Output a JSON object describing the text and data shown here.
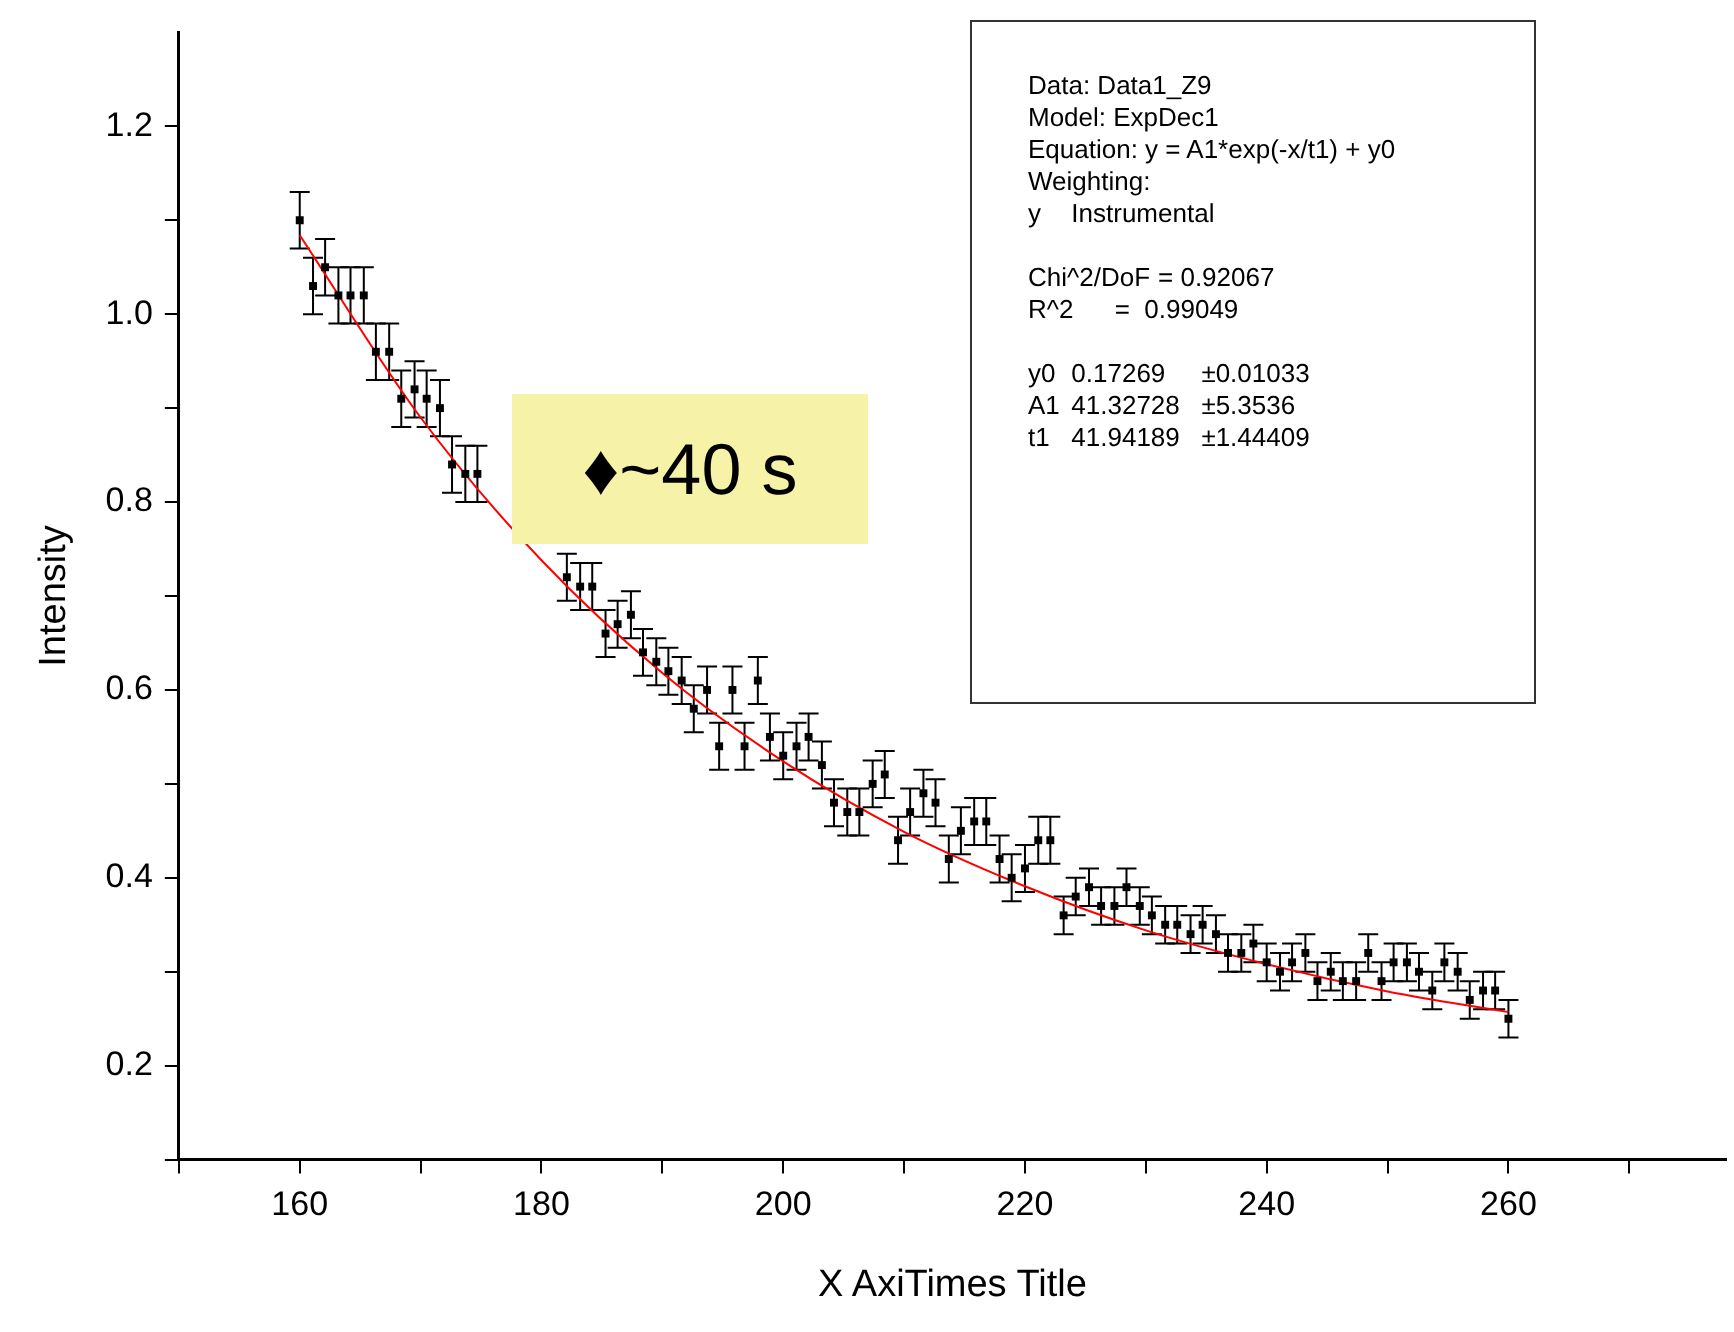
{
  "chart_data": {
    "type": "scatter",
    "xlabel": "X AxiTimes Title",
    "ylabel": "Intensity",
    "grid": false,
    "legend": false,
    "xlim": [
      150,
      278
    ],
    "xticks": [
      {
        "value": 150,
        "label": null
      },
      160,
      {
        "value": 170,
        "label": null
      },
      180,
      {
        "value": 190,
        "label": null
      },
      200,
      {
        "value": 210,
        "label": null
      },
      220,
      {
        "value": 230,
        "label": null
      },
      240,
      {
        "value": 250,
        "label": null
      },
      260,
      {
        "value": 270,
        "label": null
      }
    ],
    "ylim": [
      0.1,
      1.3
    ],
    "yticks": [
      {
        "value": 0.1,
        "label": null
      },
      0.2,
      {
        "value": 0.3,
        "label": null
      },
      0.4,
      {
        "value": 0.5,
        "label": null
      },
      0.6,
      {
        "value": 0.7,
        "label": null
      },
      0.8,
      {
        "value": 0.9,
        "label": null
      },
      {
        "value": 1,
        "label": "1.0"
      },
      {
        "value": 1.1,
        "label": null
      },
      1.2
    ],
    "annotations": [
      "♦~40 s",
      "Data: Data1_Z9\nModel: ExpDec1\nEquation: y = A1*exp(-x/t1) + y0\nWeighting:\ny\tInstrumental\n\nChi^2/DoF\t= 0.92067\nR^2\t=  0.99049\n\ny0\t0.17269\t±0.01033\nA1\t41.32728\t±5.3536\nt1\t41.94189\t±1.44409"
    ],
    "series": [
      {
        "type": "scatter",
        "marker": "square",
        "color": "#000000",
        "x": [
          160.0,
          161.1,
          162.1,
          163.2,
          164.2,
          165.3,
          166.3,
          167.4,
          168.4,
          169.5,
          170.5,
          171.6,
          172.6,
          173.7,
          174.7,
          175.8,
          176.8,
          177.9,
          178.9,
          180.0,
          181.1,
          182.1,
          183.2,
          184.2,
          185.3,
          186.3,
          187.4,
          188.4,
          189.5,
          190.5,
          191.6,
          192.6,
          193.7,
          194.7,
          195.8,
          196.8,
          197.9,
          198.9,
          200.0,
          201.1,
          202.1,
          203.2,
          204.2,
          205.3,
          206.3,
          207.4,
          208.4,
          209.5,
          210.5,
          211.6,
          212.6,
          213.7,
          214.7,
          215.8,
          216.8,
          217.9,
          218.9,
          220.0,
          221.1,
          222.1,
          223.2,
          224.2,
          225.3,
          226.3,
          227.4,
          228.4,
          229.5,
          230.5,
          231.6,
          232.6,
          233.7,
          234.7,
          235.8,
          236.8,
          237.9,
          238.9,
          240.0,
          241.1,
          242.1,
          243.2,
          244.2,
          245.3,
          246.3,
          247.4,
          248.4,
          249.5,
          250.5,
          251.6,
          252.6,
          253.7,
          254.7,
          255.8,
          256.8,
          257.9,
          258.9,
          260.0
        ],
        "values": [
          1.1,
          1.03,
          1.05,
          1.02,
          1.02,
          1.02,
          0.96,
          0.96,
          0.91,
          0.92,
          0.91,
          0.9,
          0.84,
          0.83,
          0.83,
          null,
          null,
          null,
          null,
          null,
          null,
          0.72,
          0.71,
          0.71,
          0.66,
          0.67,
          0.68,
          0.64,
          0.63,
          0.62,
          0.61,
          0.58,
          0.6,
          0.54,
          0.6,
          0.54,
          0.61,
          0.55,
          0.53,
          0.54,
          0.55,
          0.52,
          0.48,
          0.47,
          0.47,
          0.5,
          0.51,
          0.44,
          0.47,
          0.49,
          0.48,
          0.42,
          0.45,
          0.46,
          0.46,
          0.42,
          0.4,
          0.41,
          0.44,
          0.44,
          0.36,
          0.38,
          0.39,
          0.37,
          0.37,
          0.39,
          0.37,
          0.36,
          0.35,
          0.35,
          0.34,
          0.35,
          0.34,
          0.32,
          0.32,
          0.33,
          0.31,
          0.3,
          0.31,
          0.32,
          0.29,
          0.3,
          0.29,
          0.29,
          0.32,
          0.29,
          0.31,
          0.31,
          0.3,
          0.28,
          0.31,
          0.3,
          0.27,
          0.28,
          0.28,
          0.25
        ],
        "errors": [
          0.03,
          0.03,
          0.03,
          0.03,
          0.03,
          0.03,
          0.03,
          0.03,
          0.03,
          0.03,
          0.03,
          0.03,
          0.03,
          0.03,
          0.03,
          null,
          null,
          null,
          null,
          null,
          null,
          0.025,
          0.025,
          0.025,
          0.025,
          0.025,
          0.025,
          0.025,
          0.025,
          0.025,
          0.025,
          0.025,
          0.025,
          0.025,
          0.025,
          0.025,
          0.025,
          0.025,
          0.025,
          0.025,
          0.025,
          0.025,
          0.025,
          0.025,
          0.025,
          0.025,
          0.025,
          0.025,
          0.025,
          0.025,
          0.025,
          0.025,
          0.025,
          0.025,
          0.025,
          0.025,
          0.025,
          0.025,
          0.025,
          0.025,
          0.02,
          0.02,
          0.02,
          0.02,
          0.02,
          0.02,
          0.02,
          0.02,
          0.02,
          0.02,
          0.02,
          0.02,
          0.02,
          0.02,
          0.02,
          0.02,
          0.02,
          0.02,
          0.02,
          0.02,
          0.02,
          0.02,
          0.02,
          0.02,
          0.02,
          0.02,
          0.02,
          0.02,
          0.02,
          0.02,
          0.02,
          0.02,
          0.02,
          0.02,
          0.02,
          0.02
        ]
      },
      {
        "type": "line",
        "color": "#ff0000",
        "line_style": "solid",
        "x": [
          160,
          170,
          180,
          190,
          200,
          210,
          220,
          230,
          240,
          250,
          260
        ],
        "values": [
          1.084,
          0.89,
          0.738,
          0.618,
          0.524,
          0.449,
          0.391,
          0.344,
          0.308,
          0.279,
          0.257
        ]
      }
    ]
  }
}
